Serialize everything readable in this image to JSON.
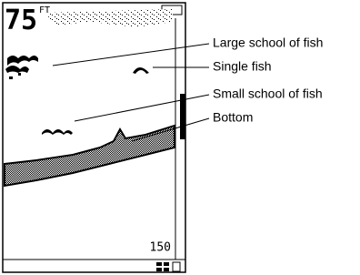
{
  "display": {
    "depth": "75",
    "unit": "FT",
    "range": "150"
  },
  "callouts": [
    {
      "label": "Large school of fish"
    },
    {
      "label": "Single fish"
    },
    {
      "label": "Small school of fish"
    },
    {
      "label": "Bottom"
    }
  ]
}
